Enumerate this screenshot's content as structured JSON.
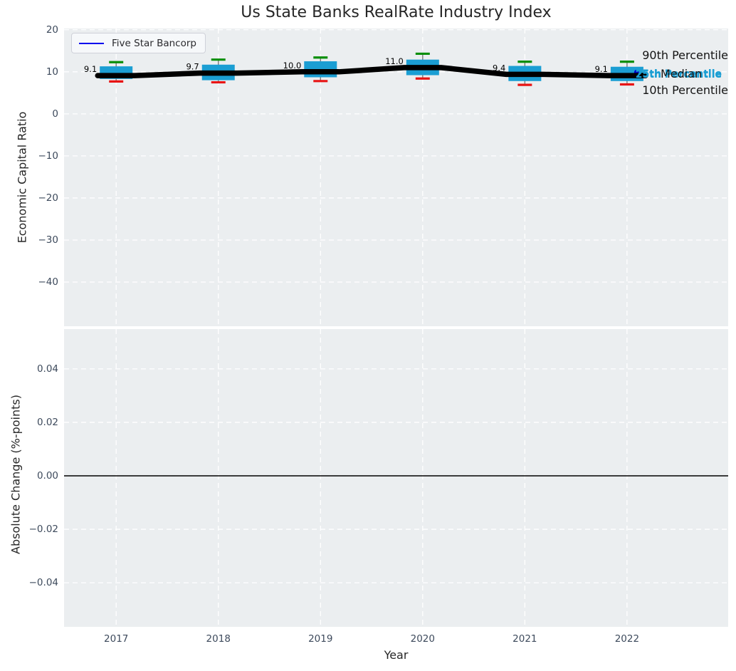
{
  "title": "Us State Banks RealRate Industry Index",
  "legend": {
    "label": "Five Star Bancorp"
  },
  "annotations": {
    "p90_label": "90th Percentile",
    "p75_label": "75th Percentile",
    "p25_label": "25th Percentile",
    "median_label": "Median",
    "p10_label": "10th Percentile"
  },
  "colors": {
    "box": "#1b9ed3",
    "median_line": "#000000",
    "whisker": "#7a7a7a",
    "cap_top": "#0a8f0a",
    "cap_bottom": "#e81414",
    "company_line": "#0000ee",
    "company_dot": "#0000cc",
    "plot_bg": "#ebeef0",
    "grid": "#ffffff",
    "zero_line": "#000000",
    "tick_text": "#3d4a5c",
    "annotation_blue": "#1b9ed3",
    "value_label": "#000000"
  },
  "chart_data": [
    {
      "type": "boxplot",
      "panel": "economic-capital-ratio",
      "title": "Us State Banks RealRate Industry Index",
      "xlabel": "Year",
      "ylabel": "Economic Capital Ratio",
      "x": [
        2017,
        2018,
        2019,
        2020,
        2021,
        2022
      ],
      "xtick_labels": [
        "2017",
        "2018",
        "2019",
        "2020",
        "2021",
        "2022"
      ],
      "xlim": [
        2016.49,
        2022.99
      ],
      "ylim": [
        -50.5,
        20.3
      ],
      "yticks": [
        20,
        10,
        0,
        -10,
        -20,
        -30,
        -40
      ],
      "ytick_labels": [
        "20",
        "10",
        "0",
        "−10",
        "−20",
        "−30",
        "−40"
      ],
      "grid": "white dashed, horizontal and vertical",
      "legend_position": "upper left",
      "series": [
        {
          "name": "10th Percentile",
          "values": [
            7.7,
            7.5,
            7.8,
            8.4,
            6.9,
            7.0
          ]
        },
        {
          "name": "25th Percentile",
          "values": [
            8.3,
            8.0,
            8.7,
            9.2,
            7.8,
            7.8
          ]
        },
        {
          "name": "Median",
          "values": [
            9.1,
            9.7,
            10.0,
            11.0,
            9.4,
            9.1
          ]
        },
        {
          "name": "75th Percentile",
          "values": [
            11.3,
            11.7,
            12.5,
            12.9,
            11.4,
            11.2
          ]
        },
        {
          "name": "90th Percentile",
          "values": [
            12.3,
            12.9,
            13.4,
            14.3,
            12.4,
            12.4
          ]
        }
      ],
      "median_value_labels": [
        "9.1",
        "9.7",
        "10.0",
        "11.0",
        "9.4",
        "9.1"
      ],
      "company_marker": {
        "name": "Five Star Bancorp",
        "year": 2022.1,
        "value": 9.8
      }
    },
    {
      "type": "line",
      "panel": "absolute-change",
      "xlabel": "Year",
      "ylabel": "Absolute Change (%-points)",
      "xlim": [
        2016.49,
        2022.99
      ],
      "ylim": [
        -0.0565,
        0.0549
      ],
      "yticks": [
        0.04,
        0.02,
        0.0,
        -0.02,
        -0.04
      ],
      "ytick_labels": [
        "0.04",
        "0.02",
        "0.00",
        "−0.02",
        "−0.04"
      ],
      "zero_line": 0.0,
      "grid": "white dashed, horizontal and vertical",
      "series": []
    }
  ]
}
